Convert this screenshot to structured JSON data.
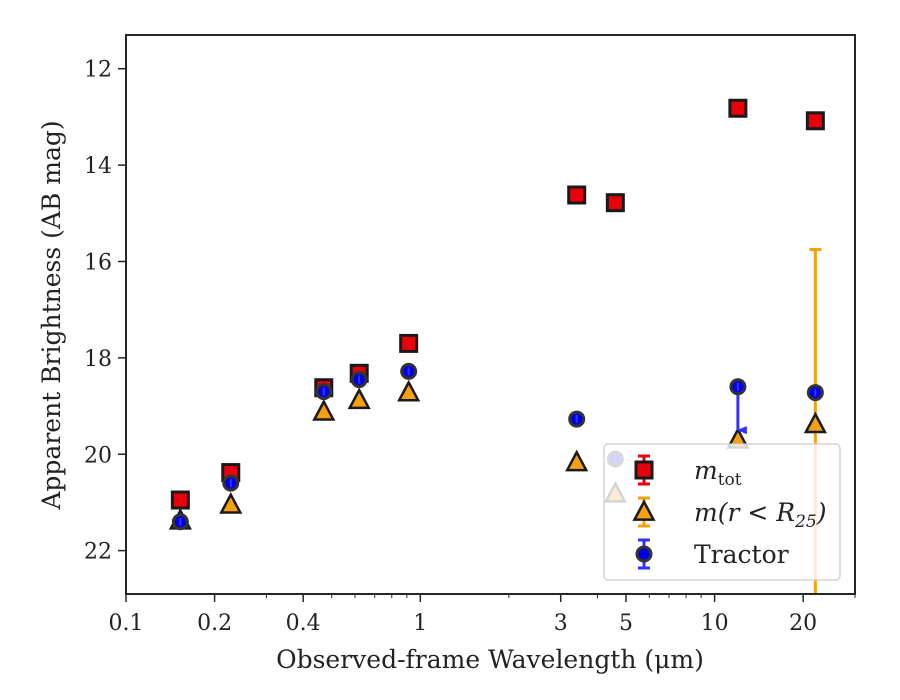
{
  "chart_data": {
    "type": "scatter",
    "title": "",
    "xlabel": "Observed-frame Wavelength (μm)",
    "ylabel": "Apparent Brightness (AB mag)",
    "xscale": "log",
    "xlim": [
      0.1,
      30
    ],
    "ylim": [
      22.9,
      11.3
    ],
    "y_inverted": true,
    "grid": false,
    "legend_position": "lower-right",
    "x_ticks": [
      {
        "value": 0.1,
        "label": "0.1"
      },
      {
        "value": 0.2,
        "label": "0.2"
      },
      {
        "value": 0.4,
        "label": "0.4"
      },
      {
        "value": 1,
        "label": "1"
      },
      {
        "value": 3,
        "label": "3"
      },
      {
        "value": 5,
        "label": "5"
      },
      {
        "value": 10,
        "label": "10"
      },
      {
        "value": 20,
        "label": "20"
      }
    ],
    "y_ticks": [
      {
        "value": 12,
        "label": "12"
      },
      {
        "value": 14,
        "label": "14"
      },
      {
        "value": 16,
        "label": "16"
      },
      {
        "value": 18,
        "label": "18"
      },
      {
        "value": 20,
        "label": "20"
      },
      {
        "value": 22,
        "label": "22"
      }
    ],
    "series": [
      {
        "name": "m_tot",
        "legend_main": "m",
        "legend_sub": "tot",
        "marker": "square",
        "color": "#e8000b",
        "edge_color": "#1a1a1a",
        "errorbar_color": "#e8000b",
        "points": [
          {
            "x": 0.153,
            "y": 20.95
          },
          {
            "x": 0.227,
            "y": 20.38
          },
          {
            "x": 0.47,
            "y": 18.62
          },
          {
            "x": 0.62,
            "y": 18.32
          },
          {
            "x": 0.913,
            "y": 17.7
          },
          {
            "x": 3.4,
            "y": 14.62
          },
          {
            "x": 4.6,
            "y": 14.78
          },
          {
            "x": 12.0,
            "y": 12.82
          },
          {
            "x": 22.0,
            "y": 13.08
          }
        ]
      },
      {
        "name": "m(r < R25)",
        "legend_main": "m(r < R",
        "legend_sub": "25",
        "legend_close": ")",
        "marker": "triangle",
        "color": "#f5a00f",
        "edge_color": "#1a1a1a",
        "errorbar_color": "#f5a00f",
        "points": [
          {
            "x": 0.153,
            "y": 21.38
          },
          {
            "x": 0.227,
            "y": 21.05
          },
          {
            "x": 0.47,
            "y": 19.12
          },
          {
            "x": 0.62,
            "y": 18.88
          },
          {
            "x": 0.913,
            "y": 18.72
          },
          {
            "x": 3.4,
            "y": 20.17
          },
          {
            "x": 4.6,
            "y": 20.82
          },
          {
            "x": 12.0,
            "y": 19.7
          },
          {
            "x": 22.0,
            "y": 19.38,
            "yerr_low": 15.75,
            "yerr_high": 22.9
          }
        ]
      },
      {
        "name": "Tractor",
        "marker": "circle",
        "color": "#0000e6",
        "edge_color": "#333333",
        "errorbar_color": "#3232ff",
        "points": [
          {
            "x": 0.153,
            "y": 21.4
          },
          {
            "x": 0.227,
            "y": 20.6
          },
          {
            "x": 0.47,
            "y": 18.7
          },
          {
            "x": 0.62,
            "y": 18.45
          },
          {
            "x": 0.913,
            "y": 18.28
          },
          {
            "x": 3.4,
            "y": 19.27
          },
          {
            "x": 4.6,
            "y": 20.1
          },
          {
            "x": 12.0,
            "y": 18.6,
            "upper_limit_to": 19.5
          },
          {
            "x": 22.0,
            "y": 18.72
          }
        ]
      }
    ]
  }
}
